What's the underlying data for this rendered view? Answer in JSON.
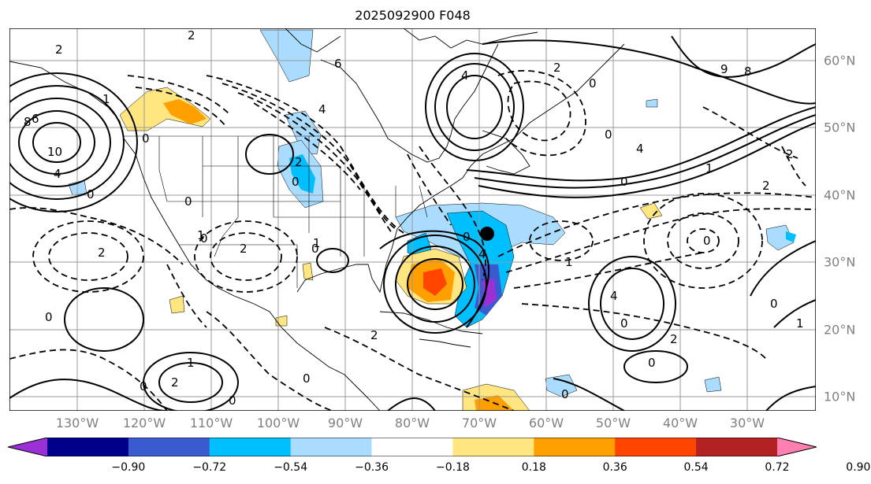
{
  "title": "2025092900 F048",
  "lon_labels": [
    "130°W",
    "120°W",
    "110°W",
    "100°W",
    "90°W",
    "80°W",
    "70°W",
    "60°W",
    "50°W",
    "40°W",
    "30°W"
  ],
  "lat_labels": [
    "60°N",
    "50°N",
    "40°N",
    "30°N",
    "20°N",
    "10°N"
  ],
  "colorbar": {
    "ticks": [
      "−0.90",
      "−0.72",
      "−0.54",
      "−0.36",
      "−0.18",
      "0.18",
      "0.36",
      "0.54",
      "0.72",
      "0.90"
    ],
    "colors": [
      "#9b30d6",
      "#00008b",
      "#3a5bd0",
      "#00bfff",
      "#aadcff",
      "#ffffff",
      "#ffe680",
      "#ffa000",
      "#ff4500",
      "#b22222",
      "#ff80b0"
    ]
  },
  "contour_labels": [
    "2",
    "2",
    "6",
    "4",
    "2",
    "0",
    "0",
    "9",
    "8",
    "4",
    "6",
    "10",
    "8",
    "4",
    "0",
    "1",
    "0",
    "4",
    "0",
    "2",
    "1",
    "0",
    "2",
    "0",
    "2",
    "0",
    "0",
    "4",
    "1",
    "0",
    "0",
    "1",
    "2",
    "2",
    "0",
    "0",
    "0",
    "1",
    "0",
    "0",
    "1",
    "2",
    "0",
    "4",
    "2",
    "0",
    "2",
    "0",
    "1"
  ],
  "markers": [
    "storm-center"
  ]
}
